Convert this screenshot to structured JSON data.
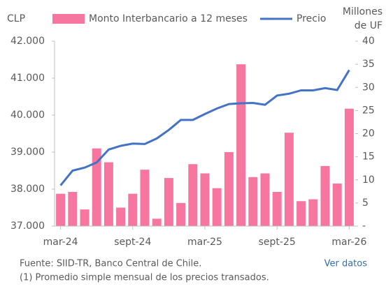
{
  "chart_data": {
    "type": "bar_line",
    "ylabel": "CLP",
    "y2label": [
      "Millones",
      "de UF"
    ],
    "categories": [
      "mar-24",
      null,
      null,
      null,
      null,
      null,
      "sept-24",
      null,
      null,
      null,
      null,
      null,
      "mar-25",
      null,
      null,
      null,
      null,
      null,
      "sept-25",
      null,
      null,
      null,
      null,
      null,
      "mar-26"
    ],
    "series": [
      {
        "name": "Monto Interbancario a 12 meses",
        "type": "bar",
        "axis": "y2",
        "color": "#f7769f",
        "values": [
          7.0,
          7.4,
          3.6,
          16.8,
          13.8,
          4.0,
          7.0,
          12.2,
          1.6,
          10.4,
          5.0,
          13.4,
          11.4,
          8.2,
          16.0,
          35.0,
          10.6,
          11.4,
          7.4,
          20.2,
          5.4,
          5.8,
          13.0,
          9.2,
          25.4
        ]
      },
      {
        "name": "Precio",
        "type": "line",
        "axis": "y",
        "color": "#4472c4",
        "values": [
          38100,
          38500,
          38580,
          38720,
          39070,
          39170,
          39230,
          39220,
          39370,
          39600,
          39870,
          39870,
          40030,
          40180,
          40300,
          40320,
          40330,
          40280,
          40530,
          40580,
          40670,
          40670,
          40730,
          40680,
          41220
        ]
      }
    ],
    "ylim": [
      37000,
      42000
    ],
    "yticks": [
      {
        "value": 37000,
        "label": "37.000"
      },
      {
        "value": 38000,
        "label": "38.000"
      },
      {
        "value": 39000,
        "label": "39.000"
      },
      {
        "value": 40000,
        "label": "40.000"
      },
      {
        "value": 41000,
        "label": "41.000"
      },
      {
        "value": 42000,
        "label": "42.000"
      }
    ],
    "y2lim": [
      0,
      40
    ],
    "y2ticks": [
      {
        "value": 0,
        "label": "-"
      },
      5,
      10,
      15,
      20,
      25,
      30,
      35,
      40
    ],
    "source": "Fuente: SIID-TR, Banco Central de Chile.",
    "note": "(1) Promedio simple mensual de los precios transados.",
    "link": "Ver datos"
  }
}
